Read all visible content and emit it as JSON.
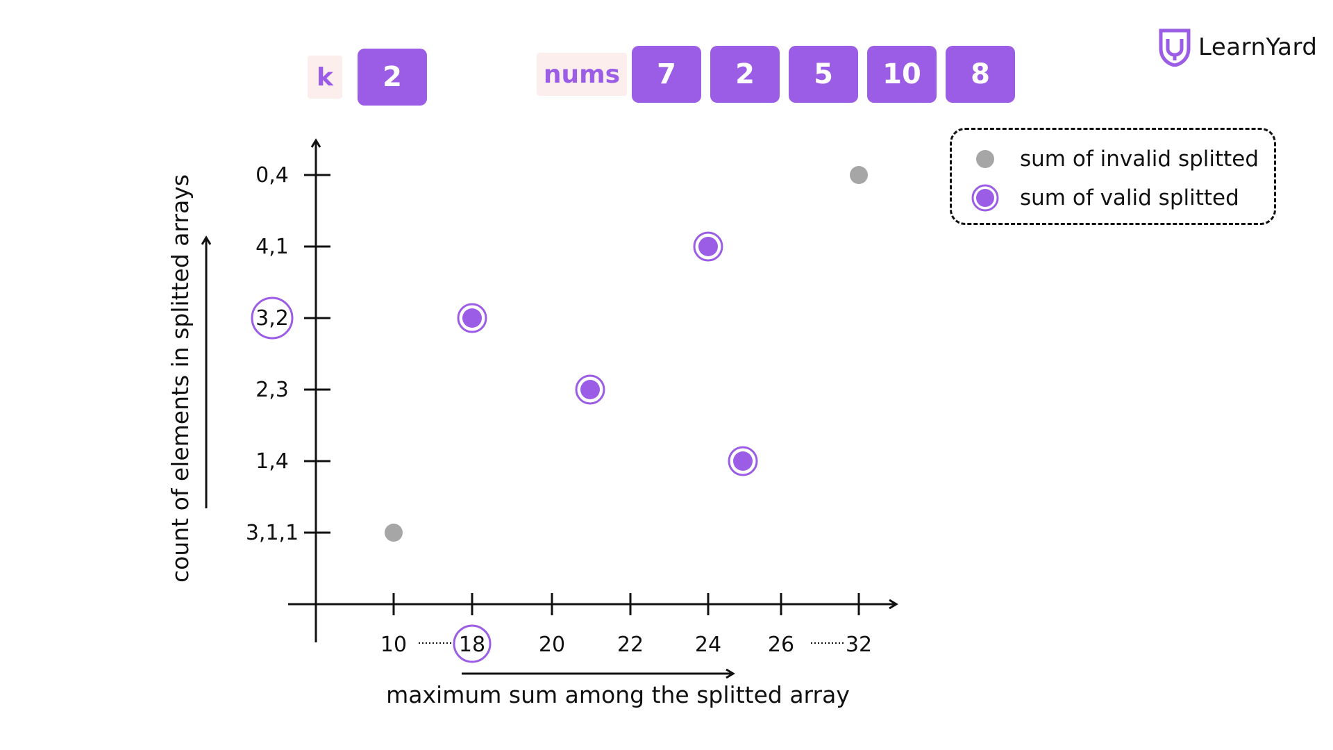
{
  "inputs": {
    "k_label": "k",
    "k_value": "2",
    "nums_label": "nums",
    "nums": [
      "7",
      "2",
      "5",
      "10",
      "8"
    ]
  },
  "brand": {
    "name": "LearnYard",
    "logo_icon": "learnyard-shield-icon"
  },
  "legend": {
    "invalid_label": "sum of invalid splitted",
    "valid_label": "sum of valid splitted"
  },
  "colors": {
    "accent": "#9b5de5",
    "invalid": "#a6a6a6",
    "tag_bg": "#fdeeee"
  },
  "chart_data": {
    "type": "scatter",
    "xlabel": "maximum sum among the splitted array",
    "ylabel": "count of elements in splitted arrays",
    "x_ticks": [
      "10",
      "18",
      "20",
      "22",
      "24",
      "26",
      "32"
    ],
    "y_ticks": [
      "3,1,1",
      "1,4",
      "2,3",
      "3,2",
      "4,1",
      "0,4"
    ],
    "highlight_x": "18",
    "highlight_y": "3,2",
    "points": [
      {
        "x": "10",
        "y": "3,1,1",
        "status": "invalid"
      },
      {
        "x": "18",
        "y": "3,2",
        "status": "valid"
      },
      {
        "x": 21,
        "y": "2,3",
        "status": "valid"
      },
      {
        "x": "24",
        "y": "4,1",
        "status": "valid"
      },
      {
        "x": 25,
        "y": "1,4",
        "status": "valid"
      },
      {
        "x": "32",
        "y": "0,4",
        "status": "invalid"
      }
    ],
    "series": [
      {
        "name": "sum of invalid splitted"
      },
      {
        "name": "sum of valid splitted"
      }
    ],
    "legend_position": "top-right"
  }
}
